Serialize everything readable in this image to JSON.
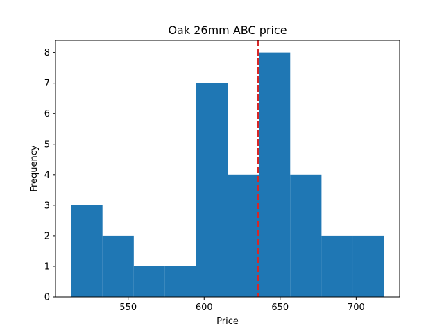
{
  "chart_data": {
    "type": "bar",
    "subtype": "histogram",
    "title": "Oak 26mm ABC price",
    "xlabel": "Price",
    "ylabel": "Frequency",
    "bins": [
      {
        "x0": 512.5,
        "x1": 533.1,
        "count": 3
      },
      {
        "x0": 533.1,
        "x1": 553.7,
        "count": 2
      },
      {
        "x0": 553.7,
        "x1": 574.2,
        "count": 1
      },
      {
        "x0": 574.2,
        "x1": 594.8,
        "count": 1
      },
      {
        "x0": 594.8,
        "x1": 615.4,
        "count": 7
      },
      {
        "x0": 615.4,
        "x1": 636.0,
        "count": 4
      },
      {
        "x0": 636.0,
        "x1": 656.6,
        "count": 8
      },
      {
        "x0": 656.6,
        "x1": 677.2,
        "count": 4
      },
      {
        "x0": 677.2,
        "x1": 697.8,
        "count": 2
      },
      {
        "x0": 697.8,
        "x1": 718.3,
        "count": 2
      }
    ],
    "reference_line": {
      "x": 635.5,
      "color": "#d62728",
      "style": "dashed"
    },
    "bar_color": "#1f77b4",
    "xlim": [
      502.2,
      728.6
    ],
    "ylim": [
      0,
      8.4
    ],
    "xticks": [
      550,
      600,
      650,
      700
    ],
    "yticks": [
      0,
      1,
      2,
      3,
      4,
      5,
      6,
      7,
      8
    ],
    "grid": false,
    "legend": "none"
  }
}
